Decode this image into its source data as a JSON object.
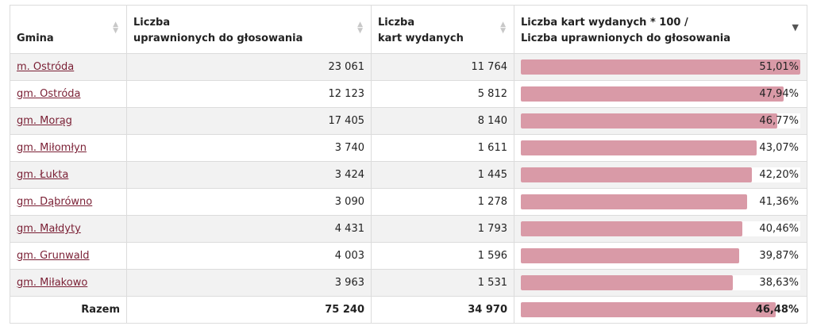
{
  "columns": [
    {
      "line1": "",
      "line2": "Gmina"
    },
    {
      "line1": "Liczba",
      "line2": "uprawnionych do głosowania"
    },
    {
      "line1": "Liczba",
      "line2": "kart wydanych"
    },
    {
      "line1": "Liczba kart wydanych * 100 /",
      "line2": "Liczba uprawnionych do głosowania"
    }
  ],
  "sort_icons": {
    "inactive": "sort-both-icon",
    "active": "sort-desc-icon"
  },
  "colors": {
    "bar": "#d99aa7",
    "link": "#7a1f34",
    "stripe": "#f2f2f2"
  },
  "rows": [
    {
      "name": "m. Ostróda",
      "eligible": "23 061",
      "issued": "11 764",
      "ratio": "51,01%",
      "pct": 51.01
    },
    {
      "name": "gm. Ostróda",
      "eligible": "12 123",
      "issued": "5 812",
      "ratio": "47,94%",
      "pct": 47.94
    },
    {
      "name": "gm. Morąg",
      "eligible": "17 405",
      "issued": "8 140",
      "ratio": "46,77%",
      "pct": 46.77
    },
    {
      "name": "gm. Miłomłyn",
      "eligible": "3 740",
      "issued": "1 611",
      "ratio": "43,07%",
      "pct": 43.07
    },
    {
      "name": "gm. Łukta",
      "eligible": "3 424",
      "issued": "1 445",
      "ratio": "42,20%",
      "pct": 42.2
    },
    {
      "name": "gm. Dąbrówno",
      "eligible": "3 090",
      "issued": "1 278",
      "ratio": "41,36%",
      "pct": 41.36
    },
    {
      "name": "gm. Małdyty",
      "eligible": "4 431",
      "issued": "1 793",
      "ratio": "40,46%",
      "pct": 40.46
    },
    {
      "name": "gm. Grunwald",
      "eligible": "4 003",
      "issued": "1 596",
      "ratio": "39,87%",
      "pct": 39.87
    },
    {
      "name": "gm. Miłakowo",
      "eligible": "3 963",
      "issued": "1 531",
      "ratio": "38,63%",
      "pct": 38.63
    }
  ],
  "total": {
    "label": "Razem",
    "eligible": "75 240",
    "issued": "34 970",
    "ratio": "46,48%",
    "pct": 46.48
  },
  "bar_max_pct": 51.01
}
